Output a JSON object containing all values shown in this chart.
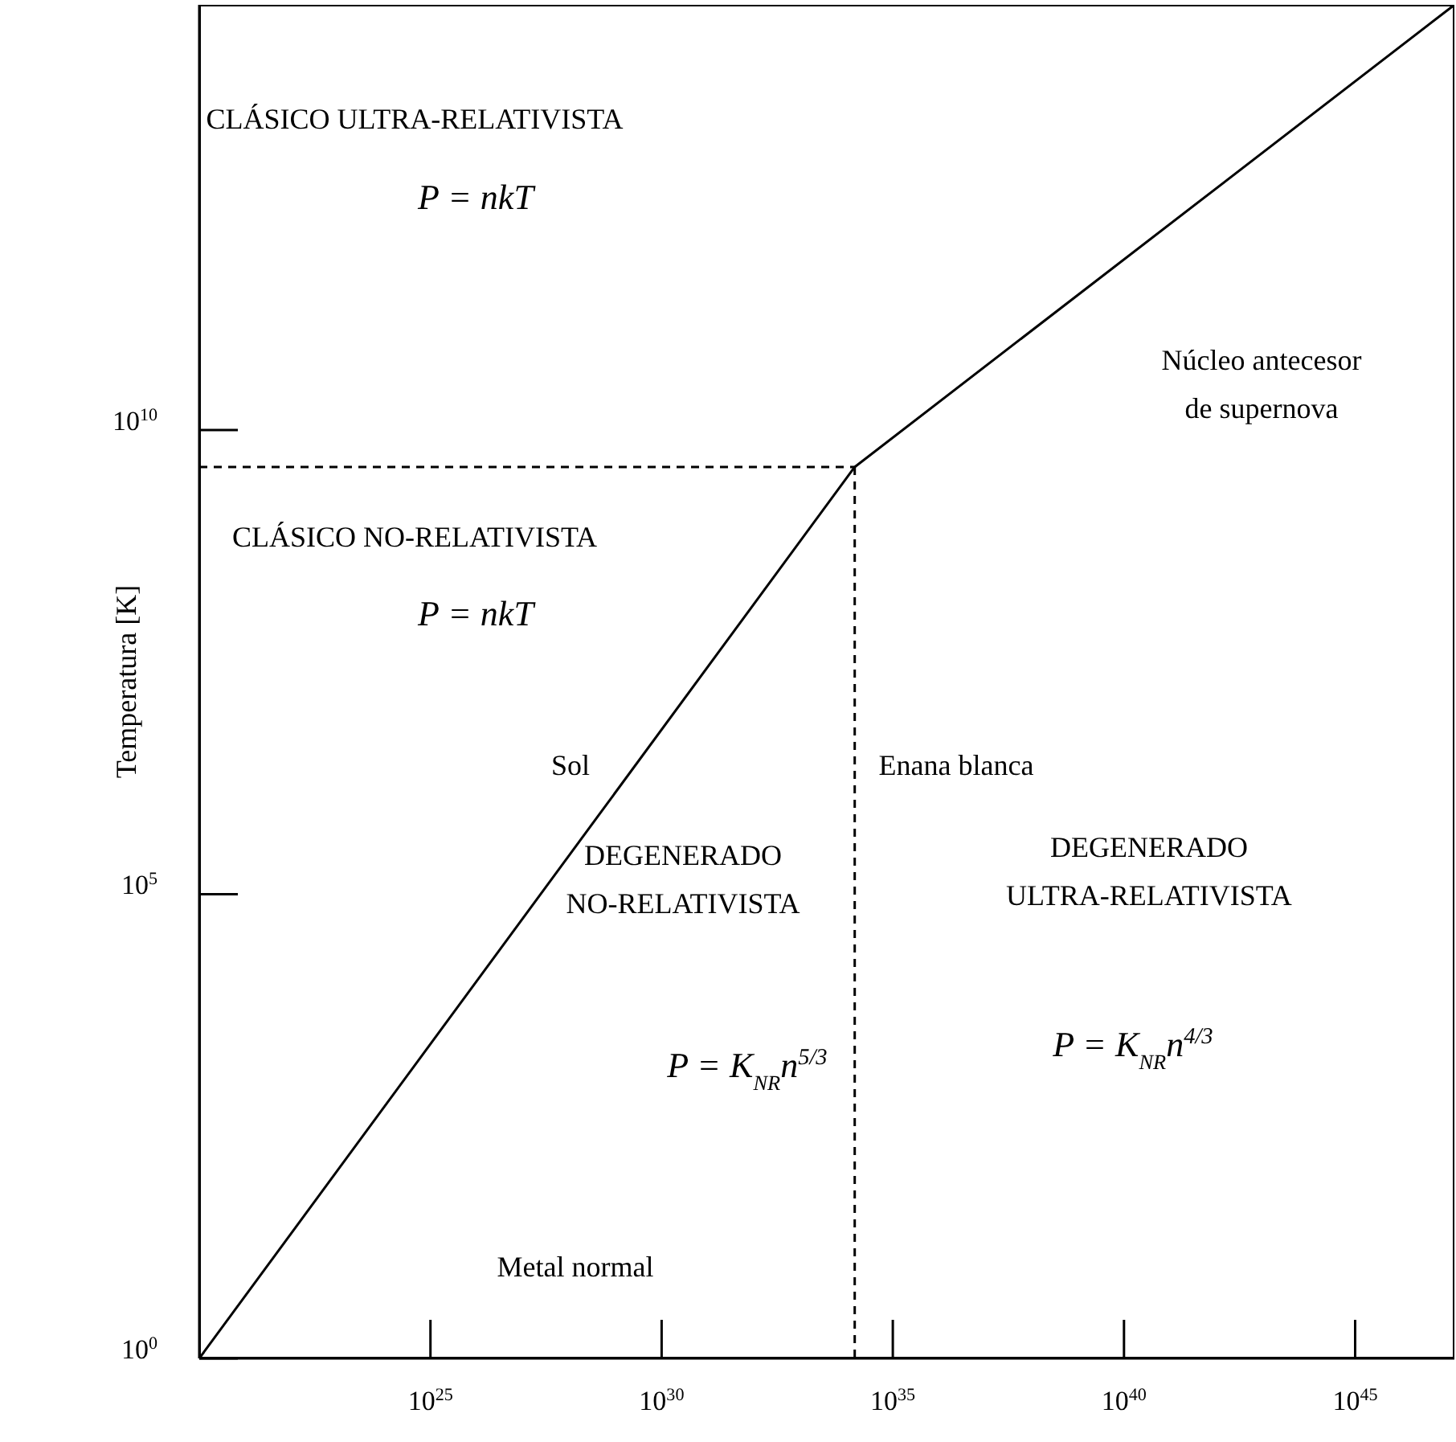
{
  "chart_data": {
    "type": "line",
    "ylabel": "Temperatura [K]",
    "log": "xy",
    "marker": "none",
    "xlim": [
      1e+20,
      1.4e+47
    ],
    "ylim": [
      1,
      380000000000000.0
    ],
    "xticks": [
      {
        "value": 1e+25,
        "label": "10$^{25}$"
      },
      {
        "value": 1e+30,
        "label": "10$^{30}$"
      },
      {
        "value": 1e+35,
        "label": "10$^{35}$"
      },
      {
        "value": 1e+40,
        "label": "10$^{40}$"
      },
      {
        "value": 1e+45,
        "label": "10$^{45}$"
      }
    ],
    "yticks": [
      {
        "value": 1,
        "label": "10$^{0}$"
      },
      {
        "value": 100000.0,
        "label": "10$^{5}$"
      },
      {
        "value": 10000000000.0,
        "label": "10$^{10}$"
      }
    ],
    "series": [
      {
        "color": "#000000",
        "line_style": "solid",
        "x": [
          1e+20,
          1.5e+34,
          1.4e+47
        ],
        "values": [
          1,
          4000000000.0,
          380000000000000.0
        ]
      },
      {
        "color": "#000000",
        "line_style": "dashed",
        "x": [
          1e+20,
          1.5e+34
        ],
        "values": [
          4000000000.0,
          4000000000.0
        ]
      },
      {
        "color": "#000000",
        "line_style": "dashed",
        "x": [
          1.5e+34,
          1.5e+34
        ],
        "values": [
          4000000000.0,
          1
        ]
      }
    ],
    "annotations": [
      "CLÁSICO ULTRA-RELATIVISTA",
      "P = nkT",
      "Núcleo antecesor de supernova",
      "CLÁSICO NO-RELATIVISTA",
      "P = nkT",
      "Sol",
      "Enana blanca",
      "DEGENERADO NO-RELATIVISTA",
      "P = K$_{NR}$n$^{5/3}$",
      "DEGENERADO ULTRA-RELATIVISTA",
      "P = K$_{NR}$n$^{4/3}$",
      "Metal normal"
    ]
  }
}
